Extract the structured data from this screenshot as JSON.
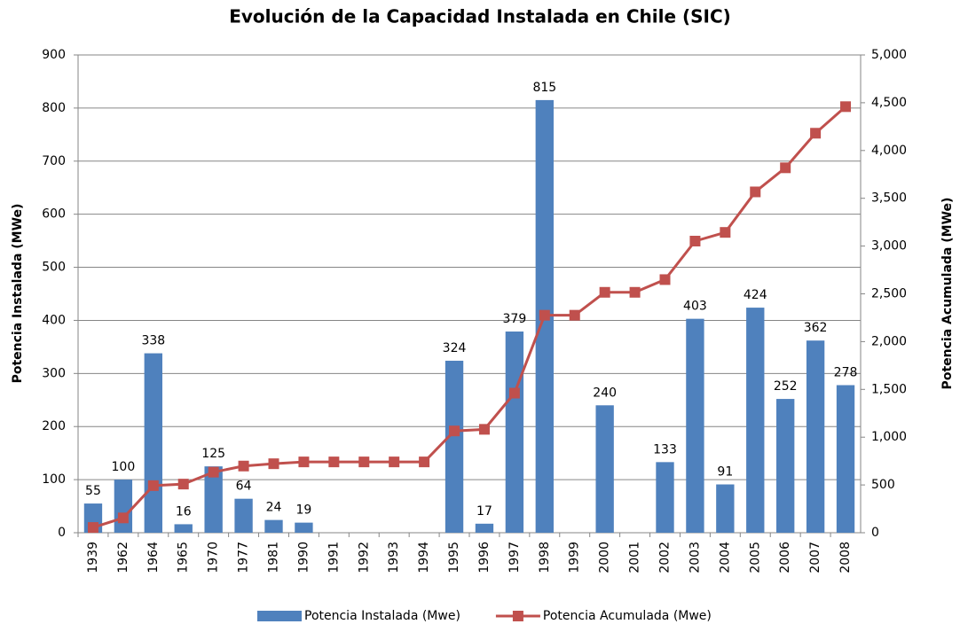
{
  "chart_data": {
    "type": "bar_line",
    "title": "Evolución de la Capacidad Instalada en Chile (SIC)",
    "y_label": "Potencia Instalada  (MWe)",
    "y2_label": "Potencia  Acumulada  (MWe)",
    "categories": [
      "1939",
      "1962",
      "1964",
      "1965",
      "1970",
      "1977",
      "1981",
      "1990",
      "1991",
      "1992",
      "1993",
      "1994",
      "1995",
      "1996",
      "1997",
      "1998",
      "1999",
      "2000",
      "2001",
      "2002",
      "2003",
      "2004",
      "2005",
      "2006",
      "2007",
      "2008"
    ],
    "series": [
      {
        "name": "Potencia Instalada  (Mwe)",
        "type": "bar",
        "color": "#4f81bd",
        "values": [
          55,
          100,
          338,
          16,
          125,
          64,
          24,
          19,
          null,
          null,
          null,
          null,
          324,
          17,
          379,
          815,
          null,
          240,
          null,
          133,
          403,
          91,
          424,
          252,
          362,
          278
        ]
      },
      {
        "name": "Potencia Acumulada (Mwe)",
        "type": "line",
        "axis": "y2",
        "color": "#c0504d",
        "values": [
          55,
          155,
          493,
          509,
          634,
          698,
          722,
          741,
          741,
          741,
          741,
          741,
          1065,
          1082,
          1461,
          2276,
          2276,
          2516,
          2516,
          2649,
          3052,
          3143,
          3567,
          3819,
          4181,
          4459
        ]
      }
    ],
    "ylim": [
      0,
      900
    ],
    "yticks": [
      0,
      100,
      200,
      300,
      400,
      500,
      600,
      700,
      800,
      900
    ],
    "y2lim": [
      0,
      5000
    ],
    "y2ticks": [
      0,
      500,
      {
        "value": 1000,
        "label": "1,000"
      },
      {
        "value": 1500,
        "label": "1,500"
      },
      {
        "value": 2000,
        "label": "2,000"
      },
      {
        "value": 2500,
        "label": "2,500"
      },
      {
        "value": 3000,
        "label": "3,000"
      },
      {
        "value": 3500,
        "label": "3,500"
      },
      {
        "value": 4000,
        "label": "4,000"
      },
      {
        "value": 4500,
        "label": "4,500"
      },
      {
        "value": 5000,
        "label": "5,000"
      }
    ],
    "grid": true,
    "legend": "bottom"
  }
}
